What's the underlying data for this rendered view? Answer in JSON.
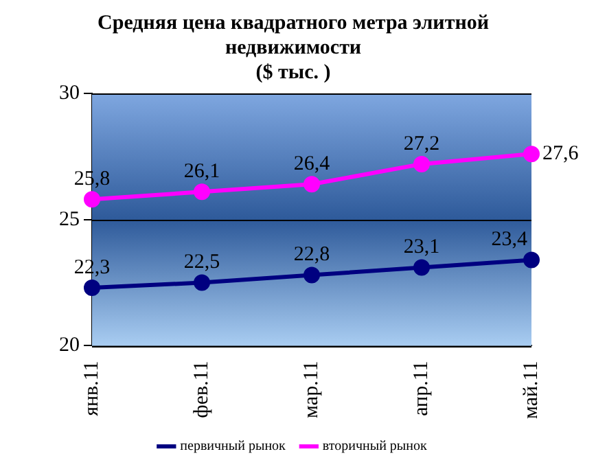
{
  "chart_data": {
    "type": "line",
    "title": [
      "Средняя цена квадратного метра элитной",
      "недвижимости",
      "($ тыс. )"
    ],
    "categories": [
      "янв.11",
      "фев.11",
      "мар.11",
      "апр.11",
      "май.11"
    ],
    "series": [
      {
        "name": "первичный рынок",
        "color": "#000080",
        "values": [
          22.3,
          22.5,
          22.8,
          23.1,
          23.4
        ],
        "value_labels": [
          "22,3",
          "22,5",
          "22,8",
          "23,1",
          "23,4"
        ]
      },
      {
        "name": "вторичный рынок",
        "color": "#ff00ff",
        "values": [
          25.8,
          26.1,
          26.4,
          27.2,
          27.6
        ],
        "value_labels": [
          "25,8",
          "26,1",
          "26,4",
          "27,2",
          "27,6"
        ]
      }
    ],
    "ylim": [
      20,
      30
    ],
    "yticks": [
      20,
      25,
      30
    ],
    "grid": "y",
    "legend": "bottom",
    "marker": "circle",
    "line_style": "solid"
  }
}
